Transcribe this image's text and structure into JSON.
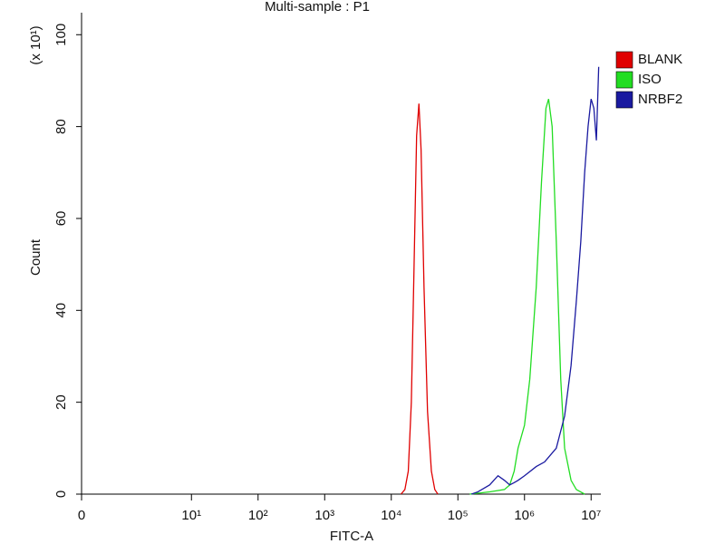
{
  "chart_data": {
    "type": "line",
    "title": "Multi-sample : P1",
    "x_label": "FITC-A",
    "y_label": "Count",
    "y_multiplier": "(x 10¹)",
    "xscale": "symlog",
    "linthresh": 10,
    "linscale": 1.65,
    "xlim": [
      0,
      14000000
    ],
    "ylim": [
      0,
      104
    ],
    "xticks": [
      0,
      {
        "value": 10,
        "label": "10¹"
      },
      {
        "value": 100,
        "label": "10²"
      },
      {
        "value": 1000,
        "label": "10³"
      },
      {
        "value": 10000,
        "label": "10⁴"
      },
      {
        "value": 100000,
        "label": "10⁵"
      },
      {
        "value": 1000000,
        "label": "10⁶"
      },
      {
        "value": 10000000,
        "label": "10⁷"
      }
    ],
    "yticks": [
      0,
      20,
      40,
      60,
      80,
      100
    ],
    "legend": "right",
    "series": [
      {
        "name": "BLANK",
        "color": "#e00000",
        "x": [
          14000,
          16000,
          18000,
          20000,
          22000,
          24000,
          26000,
          28000,
          31000,
          35000,
          40000,
          45000,
          50000
        ],
        "values": [
          0,
          1,
          5,
          20,
          50,
          78,
          85,
          75,
          45,
          18,
          5,
          1,
          0
        ]
      },
      {
        "name": "ISO",
        "color": "#22dd22",
        "x": [
          150000,
          300000,
          500000,
          600000,
          700000,
          800000,
          1000000,
          1200000,
          1500000,
          1800000,
          2100000,
          2300000,
          2600000,
          3000000,
          3500000,
          4000000,
          5000000,
          6000000,
          8000000
        ],
        "values": [
          0,
          0.5,
          1,
          2,
          5,
          10,
          15,
          25,
          45,
          68,
          84,
          86,
          80,
          55,
          25,
          10,
          3,
          1,
          0
        ]
      },
      {
        "name": "NRBF2",
        "color": "#1a1aa0",
        "x": [
          160000,
          200000,
          300000,
          400000,
          500000,
          600000,
          700000,
          800000,
          1000000,
          1500000,
          2000000,
          3000000,
          4000000,
          5000000,
          6000000,
          7000000,
          8000000,
          9000000,
          10000000,
          11000000,
          12000000,
          13000000
        ],
        "values": [
          0,
          0.5,
          2,
          4,
          3,
          2,
          2.5,
          3,
          4,
          6,
          7,
          10,
          17,
          28,
          42,
          55,
          70,
          80,
          86,
          84,
          77,
          93
        ]
      }
    ]
  }
}
